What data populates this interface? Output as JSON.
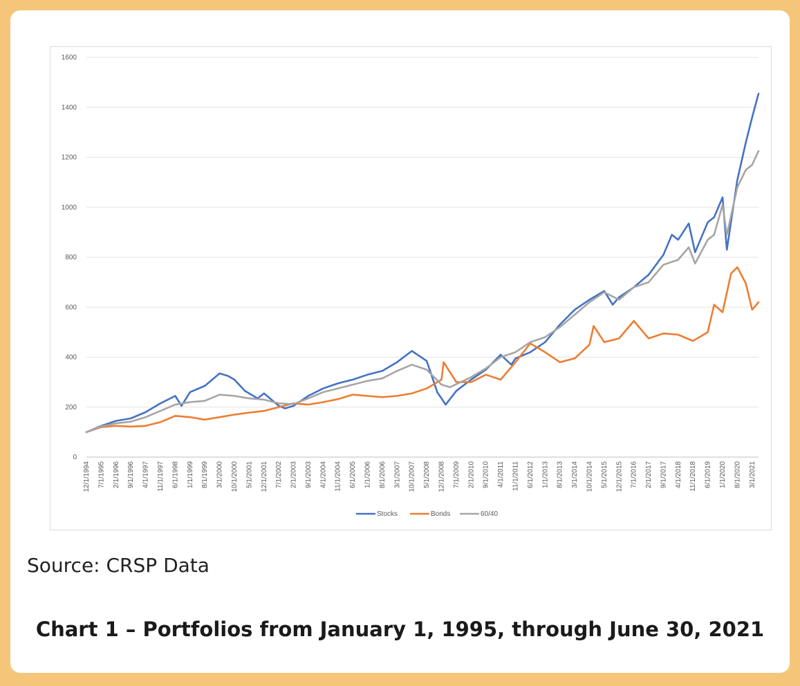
{
  "source_text": "Source: CRSP Data",
  "caption": "Chart 1 – Portfolios from January 1, 1995, through June 30, 2021",
  "chart_data": {
    "type": "line",
    "title": "",
    "xlabel": "",
    "ylabel": "",
    "ylim": [
      0,
      1600
    ],
    "yticks": [
      0,
      200,
      400,
      600,
      800,
      1000,
      1200,
      1400,
      1600
    ],
    "xlim": [
      "1994-12",
      "2021-06"
    ],
    "xtick_labels": [
      "12/1/1994",
      "7/1/1995",
      "2/1/1996",
      "9/1/1996",
      "4/1/1997",
      "11/1/1997",
      "6/1/1998",
      "1/1/1999",
      "8/1/1999",
      "3/1/2000",
      "10/1/2000",
      "5/1/2001",
      "12/1/2001",
      "7/1/2002",
      "2/1/2003",
      "9/1/2003",
      "4/1/2004",
      "11/1/2004",
      "6/1/2005",
      "1/1/2006",
      "8/1/2006",
      "3/1/2007",
      "10/1/2007",
      "5/1/2008",
      "12/1/2008",
      "7/1/2009",
      "2/1/2010",
      "9/1/2010",
      "4/1/2011",
      "11/1/2011",
      "6/1/2012",
      "1/1/2013",
      "8/1/2013",
      "3/1/2014",
      "10/1/2014",
      "5/1/2015",
      "12/1/2015",
      "7/1/2016",
      "2/1/2017",
      "9/1/2017",
      "4/1/2018",
      "11/1/2018",
      "6/1/2019",
      "1/1/2020",
      "8/1/2020",
      "3/1/2021"
    ],
    "grid": true,
    "legend_position": "bottom",
    "series": [
      {
        "name": "Stocks",
        "color": "#4472c4",
        "points": [
          [
            "1994-12",
            100
          ],
          [
            "1995-07",
            125
          ],
          [
            "1996-02",
            145
          ],
          [
            "1996-09",
            155
          ],
          [
            "1997-04",
            180
          ],
          [
            "1997-11",
            215
          ],
          [
            "1998-06",
            245
          ],
          [
            "1998-09",
            205
          ],
          [
            "1999-01",
            260
          ],
          [
            "1999-08",
            285
          ],
          [
            "2000-03",
            335
          ],
          [
            "2000-07",
            325
          ],
          [
            "2000-10",
            310
          ],
          [
            "2001-03",
            265
          ],
          [
            "2001-09",
            235
          ],
          [
            "2001-12",
            255
          ],
          [
            "2002-07",
            205
          ],
          [
            "2002-10",
            195
          ],
          [
            "2003-02",
            205
          ],
          [
            "2003-09",
            245
          ],
          [
            "2004-04",
            275
          ],
          [
            "2004-11",
            295
          ],
          [
            "2005-06",
            310
          ],
          [
            "2006-01",
            330
          ],
          [
            "2006-08",
            345
          ],
          [
            "2007-03",
            380
          ],
          [
            "2007-10",
            425
          ],
          [
            "2008-05",
            385
          ],
          [
            "2008-10",
            260
          ],
          [
            "2009-02",
            210
          ],
          [
            "2009-07",
            265
          ],
          [
            "2010-02",
            310
          ],
          [
            "2010-09",
            350
          ],
          [
            "2011-04",
            410
          ],
          [
            "2011-09",
            370
          ],
          [
            "2011-11",
            395
          ],
          [
            "2012-06",
            420
          ],
          [
            "2013-01",
            460
          ],
          [
            "2013-08",
            530
          ],
          [
            "2014-03",
            590
          ],
          [
            "2014-10",
            630
          ],
          [
            "2015-05",
            665
          ],
          [
            "2015-09",
            610
          ],
          [
            "2015-12",
            640
          ],
          [
            "2016-07",
            680
          ],
          [
            "2017-02",
            730
          ],
          [
            "2017-09",
            810
          ],
          [
            "2018-01",
            890
          ],
          [
            "2018-04",
            870
          ],
          [
            "2018-09",
            935
          ],
          [
            "2018-12",
            820
          ],
          [
            "2019-06",
            940
          ],
          [
            "2019-09",
            960
          ],
          [
            "2020-01",
            1040
          ],
          [
            "2020-03",
            830
          ],
          [
            "2020-08",
            1110
          ],
          [
            "2020-12",
            1260
          ],
          [
            "2021-03",
            1360
          ],
          [
            "2021-06",
            1455
          ]
        ]
      },
      {
        "name": "Bonds",
        "color": "#ed7d31",
        "points": [
          [
            "1994-12",
            100
          ],
          [
            "1995-07",
            120
          ],
          [
            "1996-02",
            125
          ],
          [
            "1996-09",
            122
          ],
          [
            "1997-04",
            125
          ],
          [
            "1997-11",
            140
          ],
          [
            "1998-06",
            165
          ],
          [
            "1999-01",
            160
          ],
          [
            "1999-08",
            150
          ],
          [
            "2000-03",
            160
          ],
          [
            "2000-10",
            170
          ],
          [
            "2001-05",
            178
          ],
          [
            "2001-12",
            185
          ],
          [
            "2002-07",
            200
          ],
          [
            "2003-02",
            215
          ],
          [
            "2003-09",
            210
          ],
          [
            "2004-04",
            220
          ],
          [
            "2004-11",
            232
          ],
          [
            "2005-06",
            250
          ],
          [
            "2006-01",
            245
          ],
          [
            "2006-08",
            240
          ],
          [
            "2007-03",
            245
          ],
          [
            "2007-10",
            255
          ],
          [
            "2008-05",
            275
          ],
          [
            "2008-12",
            310
          ],
          [
            "2009-01",
            380
          ],
          [
            "2009-07",
            300
          ],
          [
            "2010-02",
            300
          ],
          [
            "2010-09",
            330
          ],
          [
            "2011-04",
            310
          ],
          [
            "2011-11",
            380
          ],
          [
            "2012-06",
            455
          ],
          [
            "2013-01",
            420
          ],
          [
            "2013-08",
            380
          ],
          [
            "2014-03",
            395
          ],
          [
            "2014-10",
            450
          ],
          [
            "2014-12",
            525
          ],
          [
            "2015-05",
            460
          ],
          [
            "2015-12",
            475
          ],
          [
            "2016-07",
            545
          ],
          [
            "2017-02",
            475
          ],
          [
            "2017-09",
            495
          ],
          [
            "2018-04",
            490
          ],
          [
            "2018-11",
            465
          ],
          [
            "2019-06",
            500
          ],
          [
            "2019-09",
            610
          ],
          [
            "2020-01",
            580
          ],
          [
            "2020-05",
            735
          ],
          [
            "2020-08",
            760
          ],
          [
            "2020-12",
            695
          ],
          [
            "2021-03",
            590
          ],
          [
            "2021-06",
            620
          ]
        ]
      },
      {
        "name": "60/40",
        "color": "#a5a5a5",
        "points": [
          [
            "1994-12",
            100
          ],
          [
            "1995-07",
            123
          ],
          [
            "1996-02",
            135
          ],
          [
            "1996-09",
            142
          ],
          [
            "1997-04",
            160
          ],
          [
            "1997-11",
            185
          ],
          [
            "1998-06",
            210
          ],
          [
            "1999-01",
            220
          ],
          [
            "1999-08",
            225
          ],
          [
            "2000-03",
            250
          ],
          [
            "2000-10",
            245
          ],
          [
            "2001-05",
            235
          ],
          [
            "2001-12",
            230
          ],
          [
            "2002-07",
            215
          ],
          [
            "2003-02",
            212
          ],
          [
            "2003-09",
            235
          ],
          [
            "2004-04",
            260
          ],
          [
            "2004-11",
            275
          ],
          [
            "2005-06",
            290
          ],
          [
            "2006-01",
            305
          ],
          [
            "2006-08",
            315
          ],
          [
            "2007-03",
            345
          ],
          [
            "2007-10",
            370
          ],
          [
            "2008-05",
            350
          ],
          [
            "2008-12",
            290
          ],
          [
            "2009-04",
            280
          ],
          [
            "2010-02",
            320
          ],
          [
            "2010-09",
            355
          ],
          [
            "2011-04",
            400
          ],
          [
            "2011-11",
            420
          ],
          [
            "2012-06",
            460
          ],
          [
            "2013-01",
            480
          ],
          [
            "2013-08",
            520
          ],
          [
            "2014-03",
            570
          ],
          [
            "2014-10",
            620
          ],
          [
            "2015-05",
            660
          ],
          [
            "2015-12",
            630
          ],
          [
            "2016-07",
            680
          ],
          [
            "2017-02",
            700
          ],
          [
            "2017-09",
            770
          ],
          [
            "2018-04",
            790
          ],
          [
            "2018-09",
            840
          ],
          [
            "2018-12",
            775
          ],
          [
            "2019-06",
            870
          ],
          [
            "2019-09",
            890
          ],
          [
            "2020-01",
            1010
          ],
          [
            "2020-03",
            890
          ],
          [
            "2020-08",
            1080
          ],
          [
            "2020-12",
            1150
          ],
          [
            "2021-03",
            1170
          ],
          [
            "2021-06",
            1225
          ]
        ]
      }
    ]
  }
}
